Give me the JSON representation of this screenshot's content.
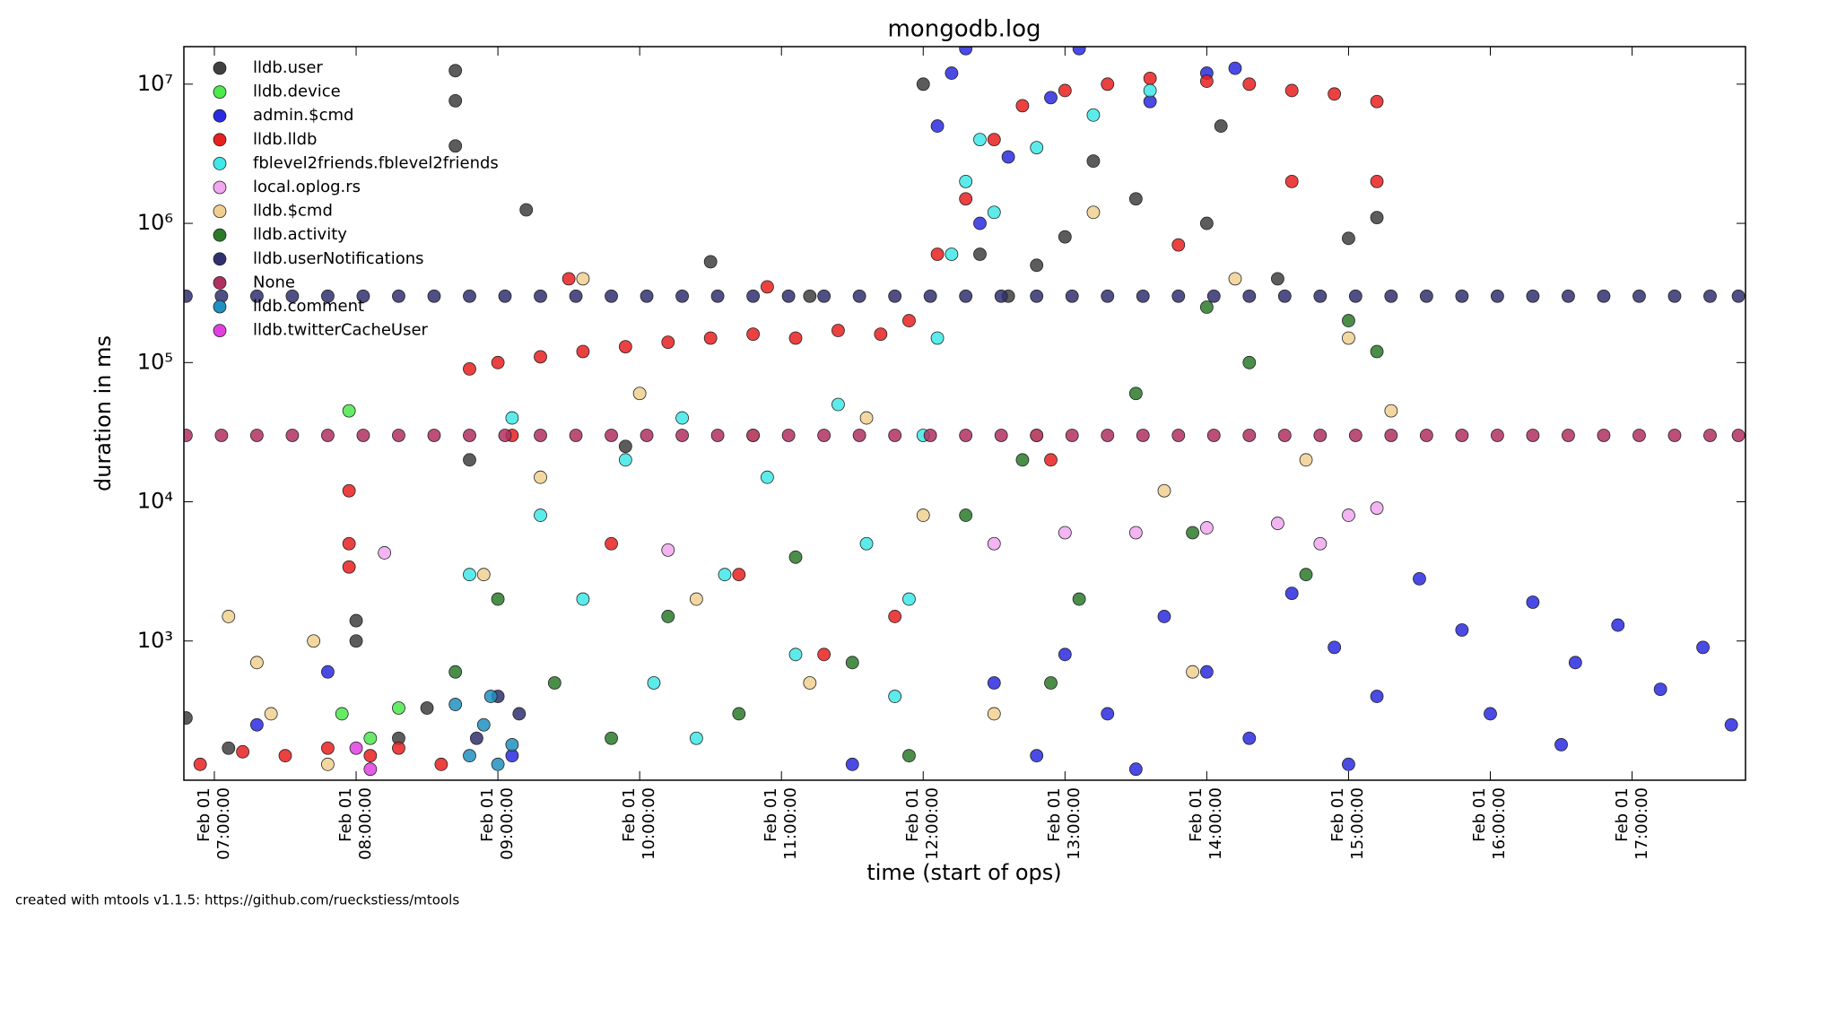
{
  "chart_data": {
    "type": "scatter",
    "title": "mongodb.log",
    "x_label": "time (start of ops)",
    "y_label": "duration in ms",
    "footer": "created with mtools v1.1.5: https://github.com/rueckstiess/mtools",
    "log_y": true,
    "legend": "upper left",
    "xlim": [
      6.785,
      17.8
    ],
    "ylim": [
      100,
      18600000
    ],
    "xticks": [
      {
        "value": 7,
        "label": "Feb 01\n07:00:00"
      },
      {
        "value": 8,
        "label": "Feb 01\n08:00:00"
      },
      {
        "value": 9,
        "label": "Feb 01\n09:00:00"
      },
      {
        "value": 10,
        "label": "Feb 01\n10:00:00"
      },
      {
        "value": 11,
        "label": "Feb 01\n11:00:00"
      },
      {
        "value": 12,
        "label": "Feb 01\n12:00:00"
      },
      {
        "value": 13,
        "label": "Feb 01\n13:00:00"
      },
      {
        "value": 14,
        "label": "Feb 01\n14:00:00"
      },
      {
        "value": 15,
        "label": "Feb 01\n15:00:00"
      },
      {
        "value": 16,
        "label": "Feb 01\n16:00:00"
      },
      {
        "value": 17,
        "label": "Feb 01\n17:00:00"
      }
    ],
    "yticks": [
      {
        "value": 1000,
        "label": "10³"
      },
      {
        "value": 10000,
        "label": "10⁴"
      },
      {
        "value": 100000,
        "label": "10⁵"
      },
      {
        "value": 1000000,
        "label": "10⁶"
      },
      {
        "value": 10000000,
        "label": "10⁷"
      }
    ],
    "series": [
      {
        "name": "lldb.user",
        "color": "#404040",
        "x": [
          6.8,
          7.1,
          8.0,
          8.0,
          8.5,
          8.7,
          8.7,
          8.7,
          9.2,
          9.9,
          10.5,
          11.2,
          12.0,
          12.4,
          12.6,
          12.8,
          13.0,
          13.2,
          13.5,
          14.0,
          14.1,
          14.5,
          15.0,
          15.2,
          8.3,
          8.8
        ],
        "values": [
          280,
          170,
          1400,
          1000,
          330,
          12500000,
          7600000,
          3600000,
          1250000,
          25000,
          530000,
          300000,
          10000000,
          600000,
          300000,
          500000,
          800000,
          2800000,
          1500000,
          1000000,
          5000000,
          400000,
          780000,
          1100000,
          200,
          20000
        ]
      },
      {
        "name": "lldb.device",
        "color": "#4ce84c",
        "x": [
          7.95,
          8.3,
          7.9,
          8.1
        ],
        "values": [
          45000,
          330,
          300,
          200
        ]
      },
      {
        "name": "admin.$cmd",
        "color": "#2a2ae0",
        "x": [
          12.1,
          12.2,
          12.3,
          12.4,
          12.6,
          12.9,
          13.1,
          13.6,
          14.0,
          14.2,
          12.5,
          12.8,
          13.0,
          13.3,
          13.7,
          14.0,
          14.3,
          14.6,
          14.9,
          15.2,
          15.5,
          15.8,
          16.0,
          16.3,
          16.6,
          16.9,
          17.2,
          17.5,
          17.7,
          15.0,
          13.5,
          16.5,
          11.5,
          9.1,
          7.3,
          7.8
        ],
        "values": [
          5000000,
          12000000,
          18000000,
          1000000,
          3000000,
          8000000,
          18000000,
          7500000,
          12000000,
          13000000,
          500,
          150,
          800,
          300,
          1500,
          600,
          200,
          2200,
          900,
          400,
          2800,
          1200,
          300,
          1900,
          700,
          1300,
          450,
          900,
          250,
          130,
          120,
          180,
          130,
          150,
          250,
          600
        ]
      },
      {
        "name": "lldb.lldb",
        "color": "#e82020",
        "x": [
          6.9,
          7.2,
          7.5,
          7.8,
          8.1,
          8.3,
          8.6,
          8.8,
          9.0,
          9.3,
          9.6,
          9.9,
          10.2,
          10.5,
          10.8,
          11.1,
          11.4,
          11.7,
          11.9,
          12.1,
          12.3,
          12.5,
          12.7,
          13.0,
          13.3,
          13.6,
          14.0,
          14.3,
          14.6,
          14.9,
          15.2,
          7.95,
          7.95,
          7.95,
          9.5,
          10.9,
          15.2,
          14.6,
          9.8,
          10.7,
          11.8,
          12.9,
          13.8,
          9.1,
          11.3
        ],
        "values": [
          130,
          160,
          150,
          170,
          150,
          170,
          130,
          90000,
          100000,
          110000,
          120000,
          130000,
          140000,
          150000,
          160000,
          150000,
          170000,
          160000,
          200000,
          600000,
          1500000,
          4000000,
          7000000,
          9000000,
          10000000,
          11000000,
          10500000,
          10000000,
          9000000,
          8500000,
          7500000,
          12000,
          5000,
          3400,
          400000,
          350000,
          2000000,
          2000000,
          5000,
          3000,
          1500,
          20000,
          700000,
          30000,
          800
        ]
      },
      {
        "name": "fblevel2friends.fblevel2friends",
        "color": "#40e8e8",
        "x": [
          8.8,
          9.1,
          9.3,
          9.6,
          9.9,
          10.1,
          10.3,
          10.6,
          10.9,
          11.1,
          11.4,
          11.6,
          11.9,
          12.0,
          12.1,
          12.2,
          12.3,
          12.4,
          12.5,
          12.8,
          13.2,
          13.6,
          11.8,
          10.4
        ],
        "values": [
          3000,
          40000,
          8000,
          2000,
          20000,
          500,
          40000,
          3000,
          15000,
          800,
          50000,
          5000,
          2000,
          30000,
          150000,
          600000,
          2000000,
          4000000,
          1200000,
          3500000,
          6000000,
          9000000,
          400,
          200
        ]
      },
      {
        "name": "local.oplog.rs",
        "color": "#f0a8f0",
        "x": [
          8.2,
          10.2,
          12.5,
          13.0,
          13.5,
          14.0,
          14.5,
          15.0,
          15.2,
          14.8
        ],
        "values": [
          4300,
          4500,
          5000,
          6000,
          6000,
          6500,
          7000,
          8000,
          9000,
          5000
        ]
      },
      {
        "name": "lldb.$cmd",
        "color": "#f0d090",
        "x": [
          7.1,
          7.3,
          7.4,
          7.7,
          7.8,
          8.9,
          9.3,
          9.6,
          10.0,
          10.4,
          10.8,
          11.2,
          11.6,
          12.0,
          12.5,
          12.8,
          13.2,
          13.7,
          14.2,
          14.7,
          15.0,
          15.3,
          13.9
        ],
        "values": [
          1500,
          700,
          300,
          1000,
          130,
          3000,
          15000,
          400000,
          60000,
          2000,
          30000,
          500,
          40000,
          8000,
          300,
          30000,
          1200000,
          12000,
          400000,
          20000,
          150000,
          45000,
          600
        ]
      },
      {
        "name": "lldb.activity",
        "color": "#2a7a2a",
        "x": [
          8.7,
          9.0,
          9.4,
          9.8,
          10.2,
          10.7,
          11.1,
          11.5,
          11.9,
          12.3,
          12.7,
          13.1,
          13.5,
          13.9,
          14.3,
          14.7,
          15.0,
          15.2,
          12.9,
          14.0
        ],
        "values": [
          600,
          2000,
          500,
          200,
          1500,
          300,
          4000,
          700,
          150,
          8000,
          20000,
          2000,
          60000,
          6000,
          100000,
          3000,
          200000,
          120000,
          500,
          250000
        ]
      },
      {
        "name": "lldb.userNotifications",
        "color": "#303070",
        "x": [
          6.8,
          7.05,
          7.3,
          7.55,
          7.8,
          8.05,
          8.3,
          8.55,
          8.8,
          9.05,
          9.3,
          9.55,
          9.8,
          10.05,
          10.3,
          10.55,
          10.8,
          11.05,
          11.3,
          11.55,
          11.8,
          12.05,
          12.3,
          12.55,
          12.8,
          13.05,
          13.3,
          13.55,
          13.8,
          14.05,
          14.3,
          14.55,
          14.8,
          15.05,
          15.3,
          15.55,
          15.8,
          16.05,
          16.3,
          16.55,
          16.8,
          17.05,
          17.3,
          17.55,
          17.75,
          8.85,
          9.0,
          9.15
        ],
        "values": [
          300000,
          300000,
          300000,
          300000,
          300000,
          300000,
          300000,
          300000,
          300000,
          300000,
          300000,
          300000,
          300000,
          300000,
          300000,
          300000,
          300000,
          300000,
          300000,
          300000,
          300000,
          300000,
          300000,
          300000,
          300000,
          300000,
          300000,
          300000,
          300000,
          300000,
          300000,
          300000,
          300000,
          300000,
          300000,
          300000,
          300000,
          300000,
          300000,
          300000,
          300000,
          300000,
          300000,
          300000,
          300000,
          200,
          400,
          300
        ]
      },
      {
        "name": "None",
        "color": "#b03060",
        "x": [
          6.8,
          7.05,
          7.3,
          7.55,
          7.8,
          8.05,
          8.3,
          8.55,
          8.8,
          9.05,
          9.3,
          9.55,
          9.8,
          10.05,
          10.3,
          10.55,
          10.8,
          11.05,
          11.3,
          11.55,
          11.8,
          12.05,
          12.3,
          12.55,
          12.8,
          13.05,
          13.3,
          13.55,
          13.8,
          14.05,
          14.3,
          14.55,
          14.8,
          15.05,
          15.3,
          15.55,
          15.8,
          16.05,
          16.3,
          16.55,
          16.8,
          17.05,
          17.3,
          17.55,
          17.75
        ],
        "values": [
          30000,
          30000,
          30000,
          30000,
          30000,
          30000,
          30000,
          30000,
          30000,
          30000,
          30000,
          30000,
          30000,
          30000,
          30000,
          30000,
          30000,
          30000,
          30000,
          30000,
          30000,
          30000,
          30000,
          30000,
          30000,
          30000,
          30000,
          30000,
          30000,
          30000,
          30000,
          30000,
          30000,
          30000,
          30000,
          30000,
          30000,
          30000,
          30000,
          30000,
          30000,
          30000,
          30000,
          30000,
          30000
        ]
      },
      {
        "name": "lldb.comment",
        "color": "#2090c0",
        "x": [
          8.8,
          8.9,
          9.0,
          9.1,
          8.7,
          8.95
        ],
        "values": [
          150,
          250,
          130,
          180,
          350,
          400
        ]
      },
      {
        "name": "lldb.twitterCacheUser",
        "color": "#e040e0",
        "x": [
          8.0,
          8.1
        ],
        "values": [
          170,
          120
        ]
      }
    ]
  }
}
